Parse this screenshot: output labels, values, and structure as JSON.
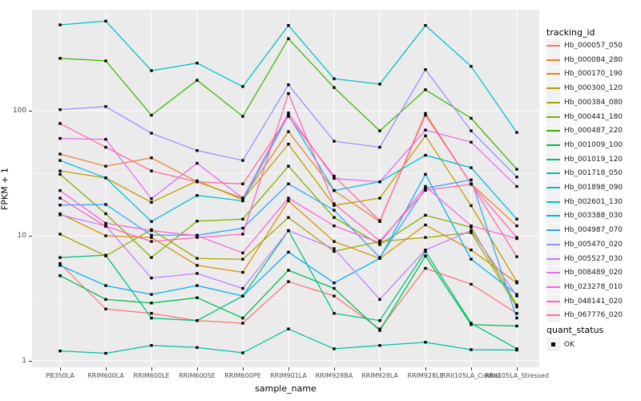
{
  "chart_data": {
    "type": "line",
    "title": "",
    "xlabel": "sample_name",
    "ylabel": "FPKM + 1",
    "y_scale": "log10",
    "y_ticks": [
      "1",
      "10",
      "100"
    ],
    "y_tick_values": [
      1,
      10,
      100
    ],
    "y_minor_tick_values": [
      3.162,
      31.62,
      316.2
    ],
    "ylim": [
      0.89,
      660
    ],
    "grid": true,
    "legend_position": "right",
    "marker": "black-square",
    "categories": [
      "PB350LA",
      "RRIM600LA",
      "RRIM600LE",
      "RRIM600SE",
      "RRIM600PE",
      "RRIM901LA",
      "RRIM928BA",
      "RRIM928LA",
      "RRIM928LE",
      "RRII105LA_Control",
      "RRII105LA_Stressed"
    ],
    "series": [
      {
        "name": "Hb_000057_050",
        "color": "#F8766D",
        "values": [
          6.0,
          2.6,
          2.4,
          2.1,
          2.0,
          4.3,
          3.3,
          1.8,
          5.5,
          4.1,
          2.4
        ]
      },
      {
        "name": "Hb_000084_280",
        "color": "#EA8331",
        "values": [
          45,
          36,
          42,
          27,
          20,
          68,
          23,
          13,
          95,
          26,
          12
        ]
      },
      {
        "name": "Hb_000170_190",
        "color": "#D89000",
        "values": [
          15,
          10,
          9.7,
          5.8,
          5.1,
          19,
          9.0,
          6.6,
          12.2,
          7.7,
          4.2
        ]
      },
      {
        "name": "Hb_000300_120",
        "color": "#C09B00",
        "values": [
          33,
          29,
          18.5,
          27.5,
          19.5,
          54,
          17.5,
          20,
          63,
          17.4,
          4.3
        ]
      },
      {
        "name": "Hb_000384_080",
        "color": "#A3A500",
        "values": [
          10.3,
          6.9,
          11.2,
          6.6,
          6.5,
          14,
          7.5,
          9.0,
          9.7,
          10.6,
          2.7
        ]
      },
      {
        "name": "Hb_000441_180",
        "color": "#7CAE00",
        "values": [
          31,
          15,
          6.7,
          13.1,
          13.6,
          36,
          14,
          8.5,
          14.6,
          11.7,
          2.8
        ]
      },
      {
        "name": "Hb_000487_220",
        "color": "#39B600",
        "values": [
          262,
          250,
          92,
          175,
          90,
          376,
          153,
          69,
          147,
          87,
          34
        ]
      },
      {
        "name": "Hb_001009_100",
        "color": "#00BB4E",
        "values": [
          4.8,
          3.1,
          2.9,
          3.2,
          2.2,
          5.3,
          3.8,
          1.75,
          6.9,
          1.95,
          1.9
        ]
      },
      {
        "name": "Hb_001019_120",
        "color": "#00BF7D",
        "values": [
          6.7,
          7.0,
          2.2,
          2.1,
          3.3,
          11,
          2.4,
          2.1,
          7.5,
          2.0,
          1.25
        ]
      },
      {
        "name": "Hb_001718_050",
        "color": "#00C1A3",
        "values": [
          1.2,
          1.15,
          1.33,
          1.28,
          1.16,
          1.8,
          1.25,
          1.33,
          1.41,
          1.23,
          1.22
        ]
      },
      {
        "name": "Hb_001898_090",
        "color": "#00BFC4",
        "values": [
          485,
          520,
          209,
          240,
          156,
          480,
          180,
          163,
          480,
          226,
          67
        ]
      },
      {
        "name": "Hb_002601_130",
        "color": "#00BAE0",
        "values": [
          40,
          29,
          13,
          21,
          19,
          92,
          23,
          27,
          44,
          35,
          13.6
        ]
      },
      {
        "name": "Hb_003388_030",
        "color": "#00B0F6",
        "values": [
          5.8,
          4.0,
          3.4,
          4.0,
          3.3,
          7.4,
          4.2,
          6.6,
          31,
          6.5,
          3.4
        ]
      },
      {
        "name": "Hb_004987_070",
        "color": "#35A2FF",
        "values": [
          17.6,
          17.8,
          10.1,
          10.1,
          11.5,
          26,
          16,
          6.7,
          24,
          28,
          2.2
        ]
      },
      {
        "name": "Hb_005470_020",
        "color": "#9590FF",
        "values": [
          102,
          108,
          66,
          48,
          40,
          161,
          57,
          51,
          213,
          69,
          29.5
        ]
      },
      {
        "name": "Hb_005527_030",
        "color": "#C77CFF",
        "values": [
          14.7,
          12,
          4.6,
          5.0,
          3.8,
          11,
          7.9,
          3.1,
          7.7,
          11,
          3.3
        ]
      },
      {
        "name": "Hb_008489_020",
        "color": "#E76BF3",
        "values": [
          60,
          59,
          19.8,
          38,
          20,
          96,
          28.7,
          27,
          70,
          56,
          24.8
        ]
      },
      {
        "name": "Hb_023278_010",
        "color": "#FA62DB",
        "values": [
          23,
          12.6,
          11,
          10,
          7.3,
          20,
          12,
          8.8,
          24.8,
          12,
          9.5
        ]
      },
      {
        "name": "Hb_048141_020",
        "color": "#FF62BC",
        "values": [
          20,
          11.9,
          9.0,
          9.7,
          10.3,
          137,
          18,
          9.1,
          23.1,
          25.8,
          9.7
        ]
      },
      {
        "name": "Hb_067776_020",
        "color": "#FF6A98",
        "values": [
          79,
          51,
          33,
          27,
          26,
          90,
          30,
          13.2,
          92,
          26,
          6.8
        ]
      }
    ]
  },
  "legend": {
    "color_legend_title": "tracking_id",
    "shape_legend_title": "quant_status",
    "shape_legend_items": [
      "OK"
    ],
    "key_background": "#F2F2F2"
  },
  "panel": {
    "background": "#EBEBEB",
    "grid_color": "#FFFFFF",
    "marker_color": "#000000",
    "axis_text_color": "#4D4D4D"
  }
}
